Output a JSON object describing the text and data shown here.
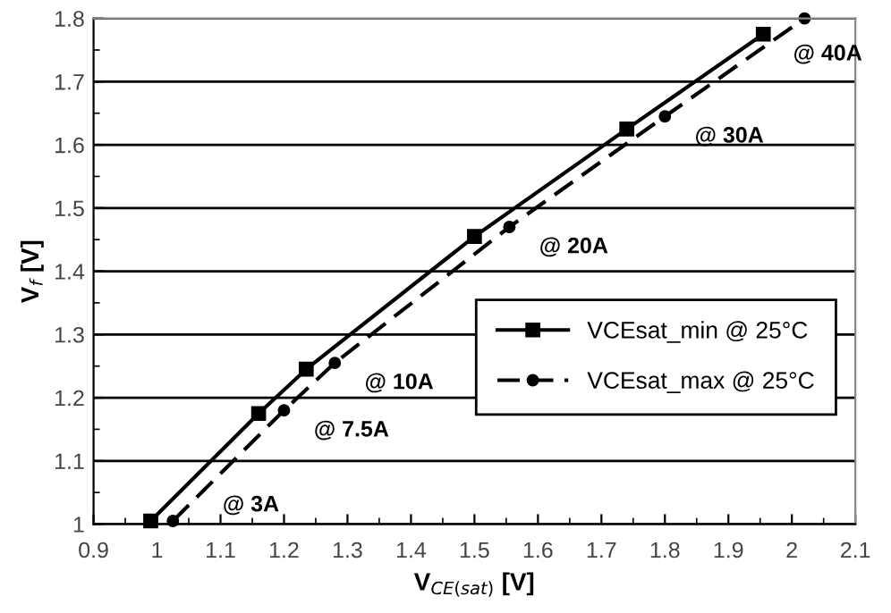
{
  "chart_data": {
    "type": "line",
    "xlabel": "V$_{CE(sat)}$ [V]",
    "ylabel": "V$_{f}$ [V]",
    "xlim": [
      0.9,
      2.1
    ],
    "xticks": [
      0.9,
      1,
      1.1,
      1.2,
      1.3,
      1.4,
      1.5,
      1.6,
      1.7,
      1.8,
      1.9,
      2,
      2.1
    ],
    "ylim": [
      1,
      1.8
    ],
    "yticks": [
      1,
      1.1,
      1.2,
      1.3,
      1.4,
      1.5,
      1.6,
      1.7,
      1.8
    ],
    "grid": "y",
    "legend": "right",
    "series": [
      {
        "name": "VCEsat_min @ 25°C",
        "color": "#000000",
        "marker": "square",
        "line_style": "solid",
        "x": [
          0.99,
          1.16,
          1.235,
          1.5,
          1.74,
          1.955
        ],
        "values": [
          1.005,
          1.175,
          1.245,
          1.455,
          1.625,
          1.775
        ]
      },
      {
        "name": "VCEsat_max @ 25°C",
        "color": "#000000",
        "marker": "circle",
        "line_style": "dashed",
        "x": [
          1.025,
          1.2,
          1.28,
          1.555,
          1.8,
          2.02
        ],
        "values": [
          1.005,
          1.18,
          1.255,
          1.47,
          1.645,
          1.8
        ]
      }
    ],
    "annotations": [
      {
        "text": "@ 3A",
        "x": 1.025,
        "y": 1.005
      },
      {
        "text": "@ 7.5A",
        "x": 1.2,
        "y": 1.18
      },
      {
        "text": "@ 10A",
        "x": 1.28,
        "y": 1.255
      },
      {
        "text": "@ 20A",
        "x": 1.555,
        "y": 1.47
      },
      {
        "text": "@ 30A",
        "x": 1.8,
        "y": 1.645
      },
      {
        "text": "@ 40A",
        "x": 1.955,
        "y": 1.775
      }
    ]
  }
}
